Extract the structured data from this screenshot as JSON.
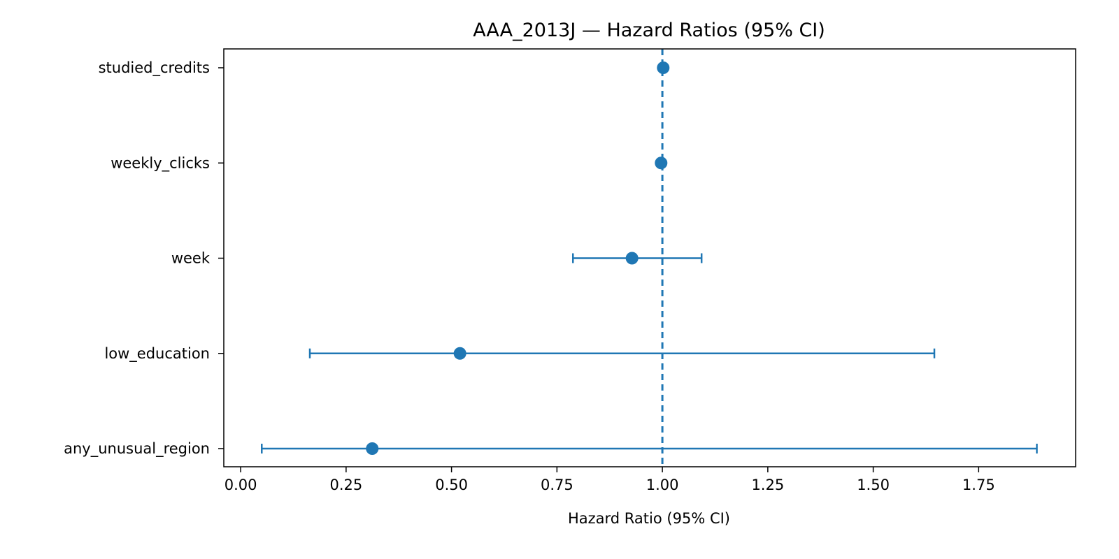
{
  "chart_data": {
    "type": "scatter",
    "subtype": "forest-plot",
    "title": "AAA_2013J — Hazard Ratios (95% CI)",
    "xlabel": "Hazard Ratio (95% CI)",
    "ylabel": "",
    "xlim": [
      -0.04,
      1.98
    ],
    "x_ticks": [
      "0.00",
      "0.25",
      "0.50",
      "0.75",
      "1.00",
      "1.25",
      "1.50",
      "1.75"
    ],
    "x_tick_values": [
      0.0,
      0.25,
      0.5,
      0.75,
      1.0,
      1.25,
      1.5,
      1.75
    ],
    "reference_line": 1.0,
    "grid": false,
    "color": "#1f77b4",
    "categories": [
      "studied_credits",
      "weekly_clicks",
      "week",
      "low_education",
      "any_unusual_region"
    ],
    "series": [
      {
        "hr": [
          1.002,
          0.997,
          0.928,
          0.52,
          0.312
        ],
        "ci_low": [
          1.0,
          0.996,
          0.788,
          0.164,
          0.05
        ],
        "ci_high": [
          1.004,
          0.999,
          1.093,
          1.645,
          1.888
        ]
      }
    ]
  }
}
